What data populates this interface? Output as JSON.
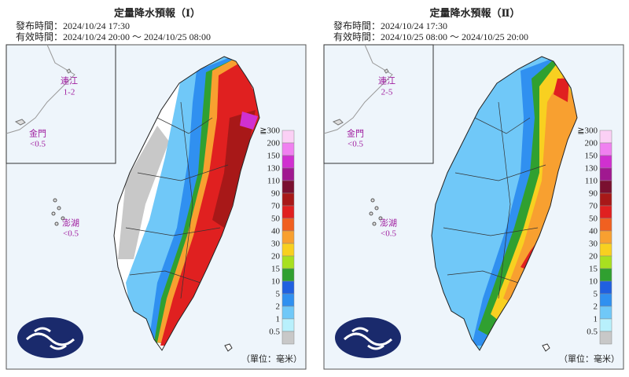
{
  "panels": [
    {
      "title": "定量降水預報（Ⅰ）",
      "issued": "發布時間：2024/10/24 17:30",
      "valid": "有效時間：2024/10/24 20:00 ～ 2024/10/25 08:00",
      "insets": [
        {
          "name": "連江",
          "value": "1-2"
        },
        {
          "name": "金門",
          "value": "<0.5"
        },
        {
          "name": "澎湖",
          "value": "<0.5"
        }
      ],
      "unit": "（單位：毫米）"
    },
    {
      "title": "定量降水預報（Ⅱ）",
      "issued": "發布時間：2024/10/24 17:30",
      "valid": "有效時間：2024/10/25 08:00 ～ 2024/10/25 20:00",
      "insets": [
        {
          "name": "連江",
          "value": "2-5"
        },
        {
          "name": "金門",
          "value": "<0.5"
        },
        {
          "name": "澎湖",
          "value": "<0.5"
        }
      ],
      "unit": "（單位：毫米）"
    }
  ],
  "legend": [
    {
      "label": "≧300",
      "color": "#fbd0f5"
    },
    {
      "label": "200",
      "color": "#f080f0"
    },
    {
      "label": "150",
      "color": "#d030d0"
    },
    {
      "label": "130",
      "color": "#a01890"
    },
    {
      "label": "110",
      "color": "#7a1030"
    },
    {
      "label": "90",
      "color": "#a81818"
    },
    {
      "label": "70",
      "color": "#e02020"
    },
    {
      "label": "50",
      "color": "#f06020"
    },
    {
      "label": "40",
      "color": "#f8a030"
    },
    {
      "label": "30",
      "color": "#f8d020"
    },
    {
      "label": "20",
      "color": "#a8e020"
    },
    {
      "label": "15",
      "color": "#30a030"
    },
    {
      "label": "10",
      "color": "#2060e0"
    },
    {
      "label": "5",
      "color": "#3090f0"
    },
    {
      "label": "2",
      "color": "#70c8f8"
    },
    {
      "label": "1",
      "color": "#b8f0fc"
    },
    {
      "label": "0.5",
      "color": "#c8c8c8"
    }
  ]
}
